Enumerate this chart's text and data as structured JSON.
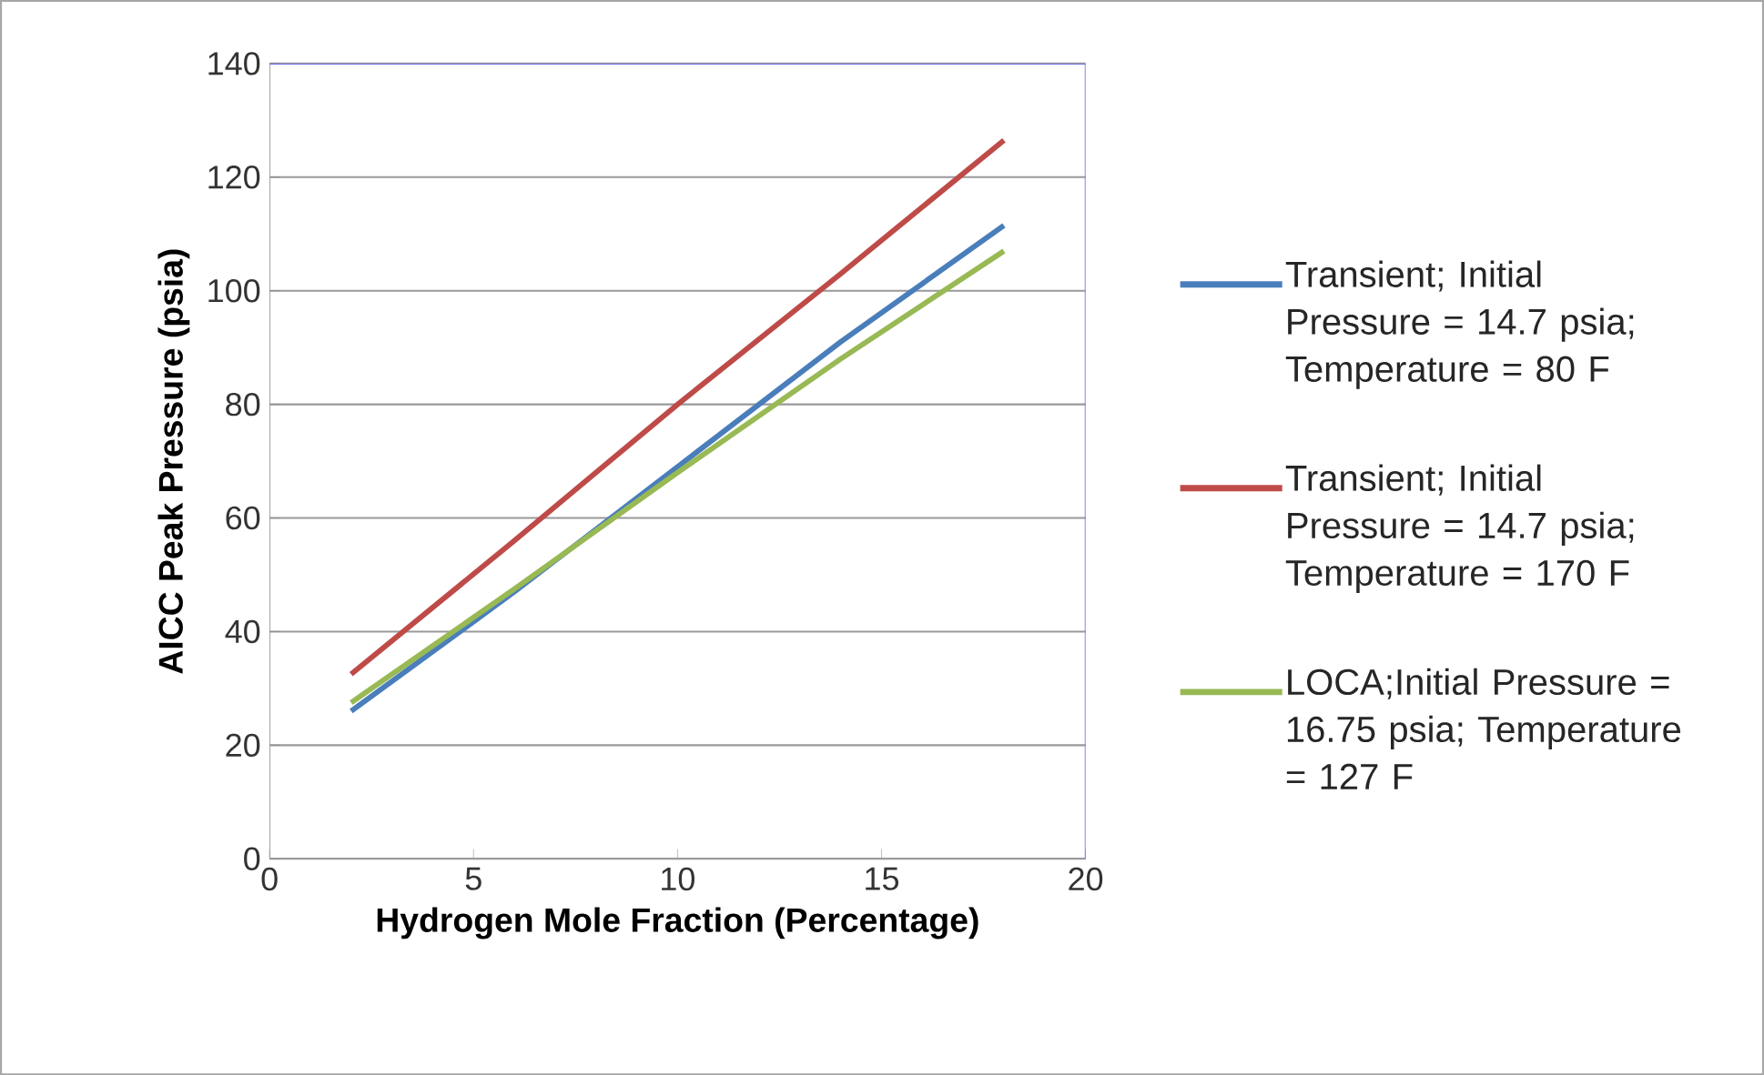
{
  "chart_data": {
    "type": "line",
    "xlabel": "Hydrogen Mole Fraction (Percentage)",
    "ylabel": "AICC Peak Pressure (psia)",
    "x": [
      2,
      6,
      10,
      14,
      18
    ],
    "series": [
      {
        "name": "Transient; Initial Pressure = 14.7 psia; Temperature = 80 F",
        "color": "#4a7ebb",
        "values": [
          26,
          47,
          69,
          91,
          111.5
        ]
      },
      {
        "name": "Transient; Initial Pressure = 14.7 psia; Temperature = 170  F",
        "color": "#be4b48",
        "values": [
          32.5,
          56,
          80,
          103,
          126.5
        ]
      },
      {
        "name": "LOCA;Initial Pressure = 16.75 psia; Temperature = 127 F",
        "color": "#98b954",
        "values": [
          27.5,
          47.5,
          68,
          88,
          107
        ]
      }
    ],
    "xlim": [
      0,
      20
    ],
    "xticks": [
      0,
      5,
      10,
      15,
      20
    ],
    "ylim": [
      0,
      140
    ],
    "yticks": [
      0,
      20,
      40,
      60,
      80,
      100,
      120,
      140
    ],
    "grid": "y",
    "legend": "right",
    "marker": "none",
    "line_style": "solid"
  }
}
